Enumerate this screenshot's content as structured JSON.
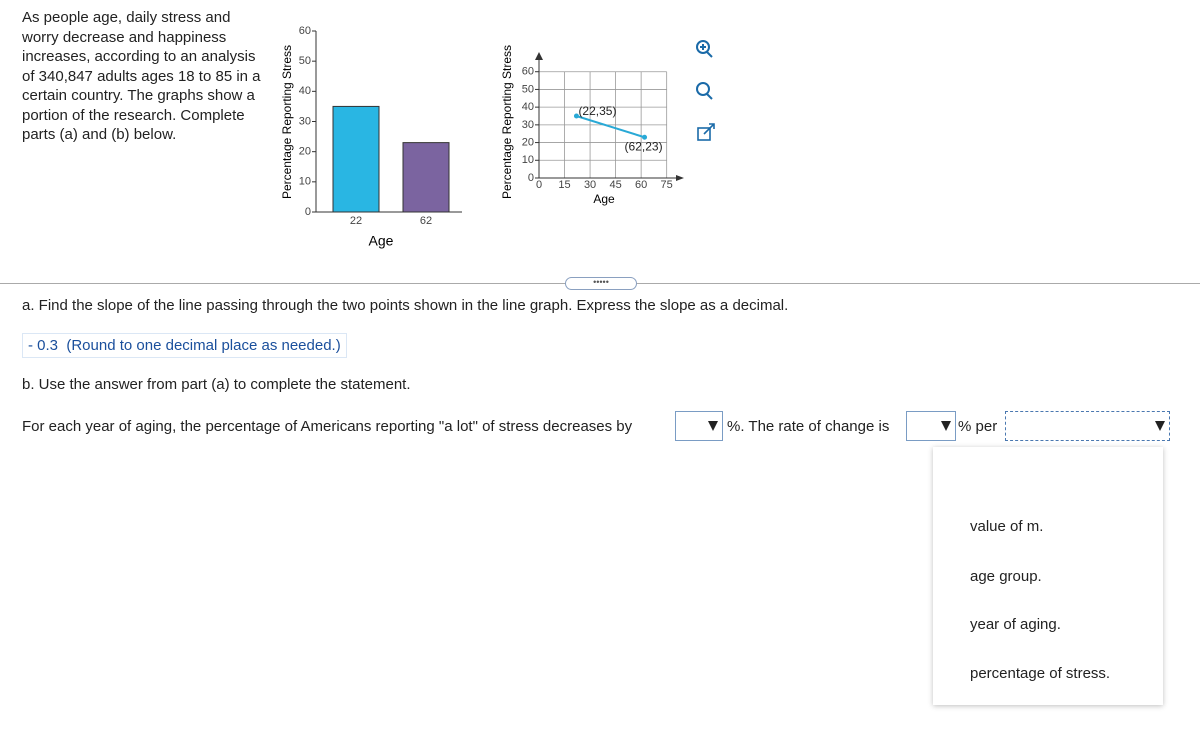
{
  "problem": {
    "intro": "As people age, daily stress and worry decrease and happiness increases, according to an analysis of 340,847 adults ages 18 to 85 in a certain country. The graphs show a portion of the research. Complete parts (a) and (b) below."
  },
  "chart_data": [
    {
      "type": "bar",
      "categories": [
        "22",
        "62"
      ],
      "values": [
        35,
        23
      ],
      "colors": [
        "#29b6e3",
        "#7b64a0"
      ],
      "ylim": [
        0,
        60
      ],
      "yticks": [
        0,
        10,
        20,
        30,
        40,
        50,
        60
      ],
      "ylabel": "Percentage Reporting Stress",
      "xlabel": "Age"
    },
    {
      "type": "line",
      "x": [
        22,
        62
      ],
      "values": [
        35,
        23
      ],
      "point_labels": [
        "(22,35)",
        "(62,23)"
      ],
      "color": "#29a9d6",
      "xlim": [
        0,
        84
      ],
      "ylim": [
        0,
        70
      ],
      "xticks": [
        0,
        15,
        30,
        45,
        60,
        75
      ],
      "yticks": [
        0,
        10,
        20,
        30,
        40,
        50,
        60
      ],
      "grid": true,
      "ylabel": "Percentage Reporting Stress",
      "xlabel": "Age"
    }
  ],
  "part_a": {
    "question": "a. Find the slope of the line passing through the two points shown in the line graph. Express the slope as a decimal.",
    "answer": "- 0.3",
    "hint": "(Round to one decimal place as needed.)"
  },
  "part_b": {
    "question": "b. Use the answer from part (a) to complete the statement.",
    "statement": [
      "For each year of aging, the percentage of Americans reporting \"a lot\" of stress decreases by",
      "%. The rate of change is",
      "% per"
    ],
    "options": [
      "value of m.",
      "age group.",
      "year of aging.",
      "percentage of stress."
    ]
  }
}
